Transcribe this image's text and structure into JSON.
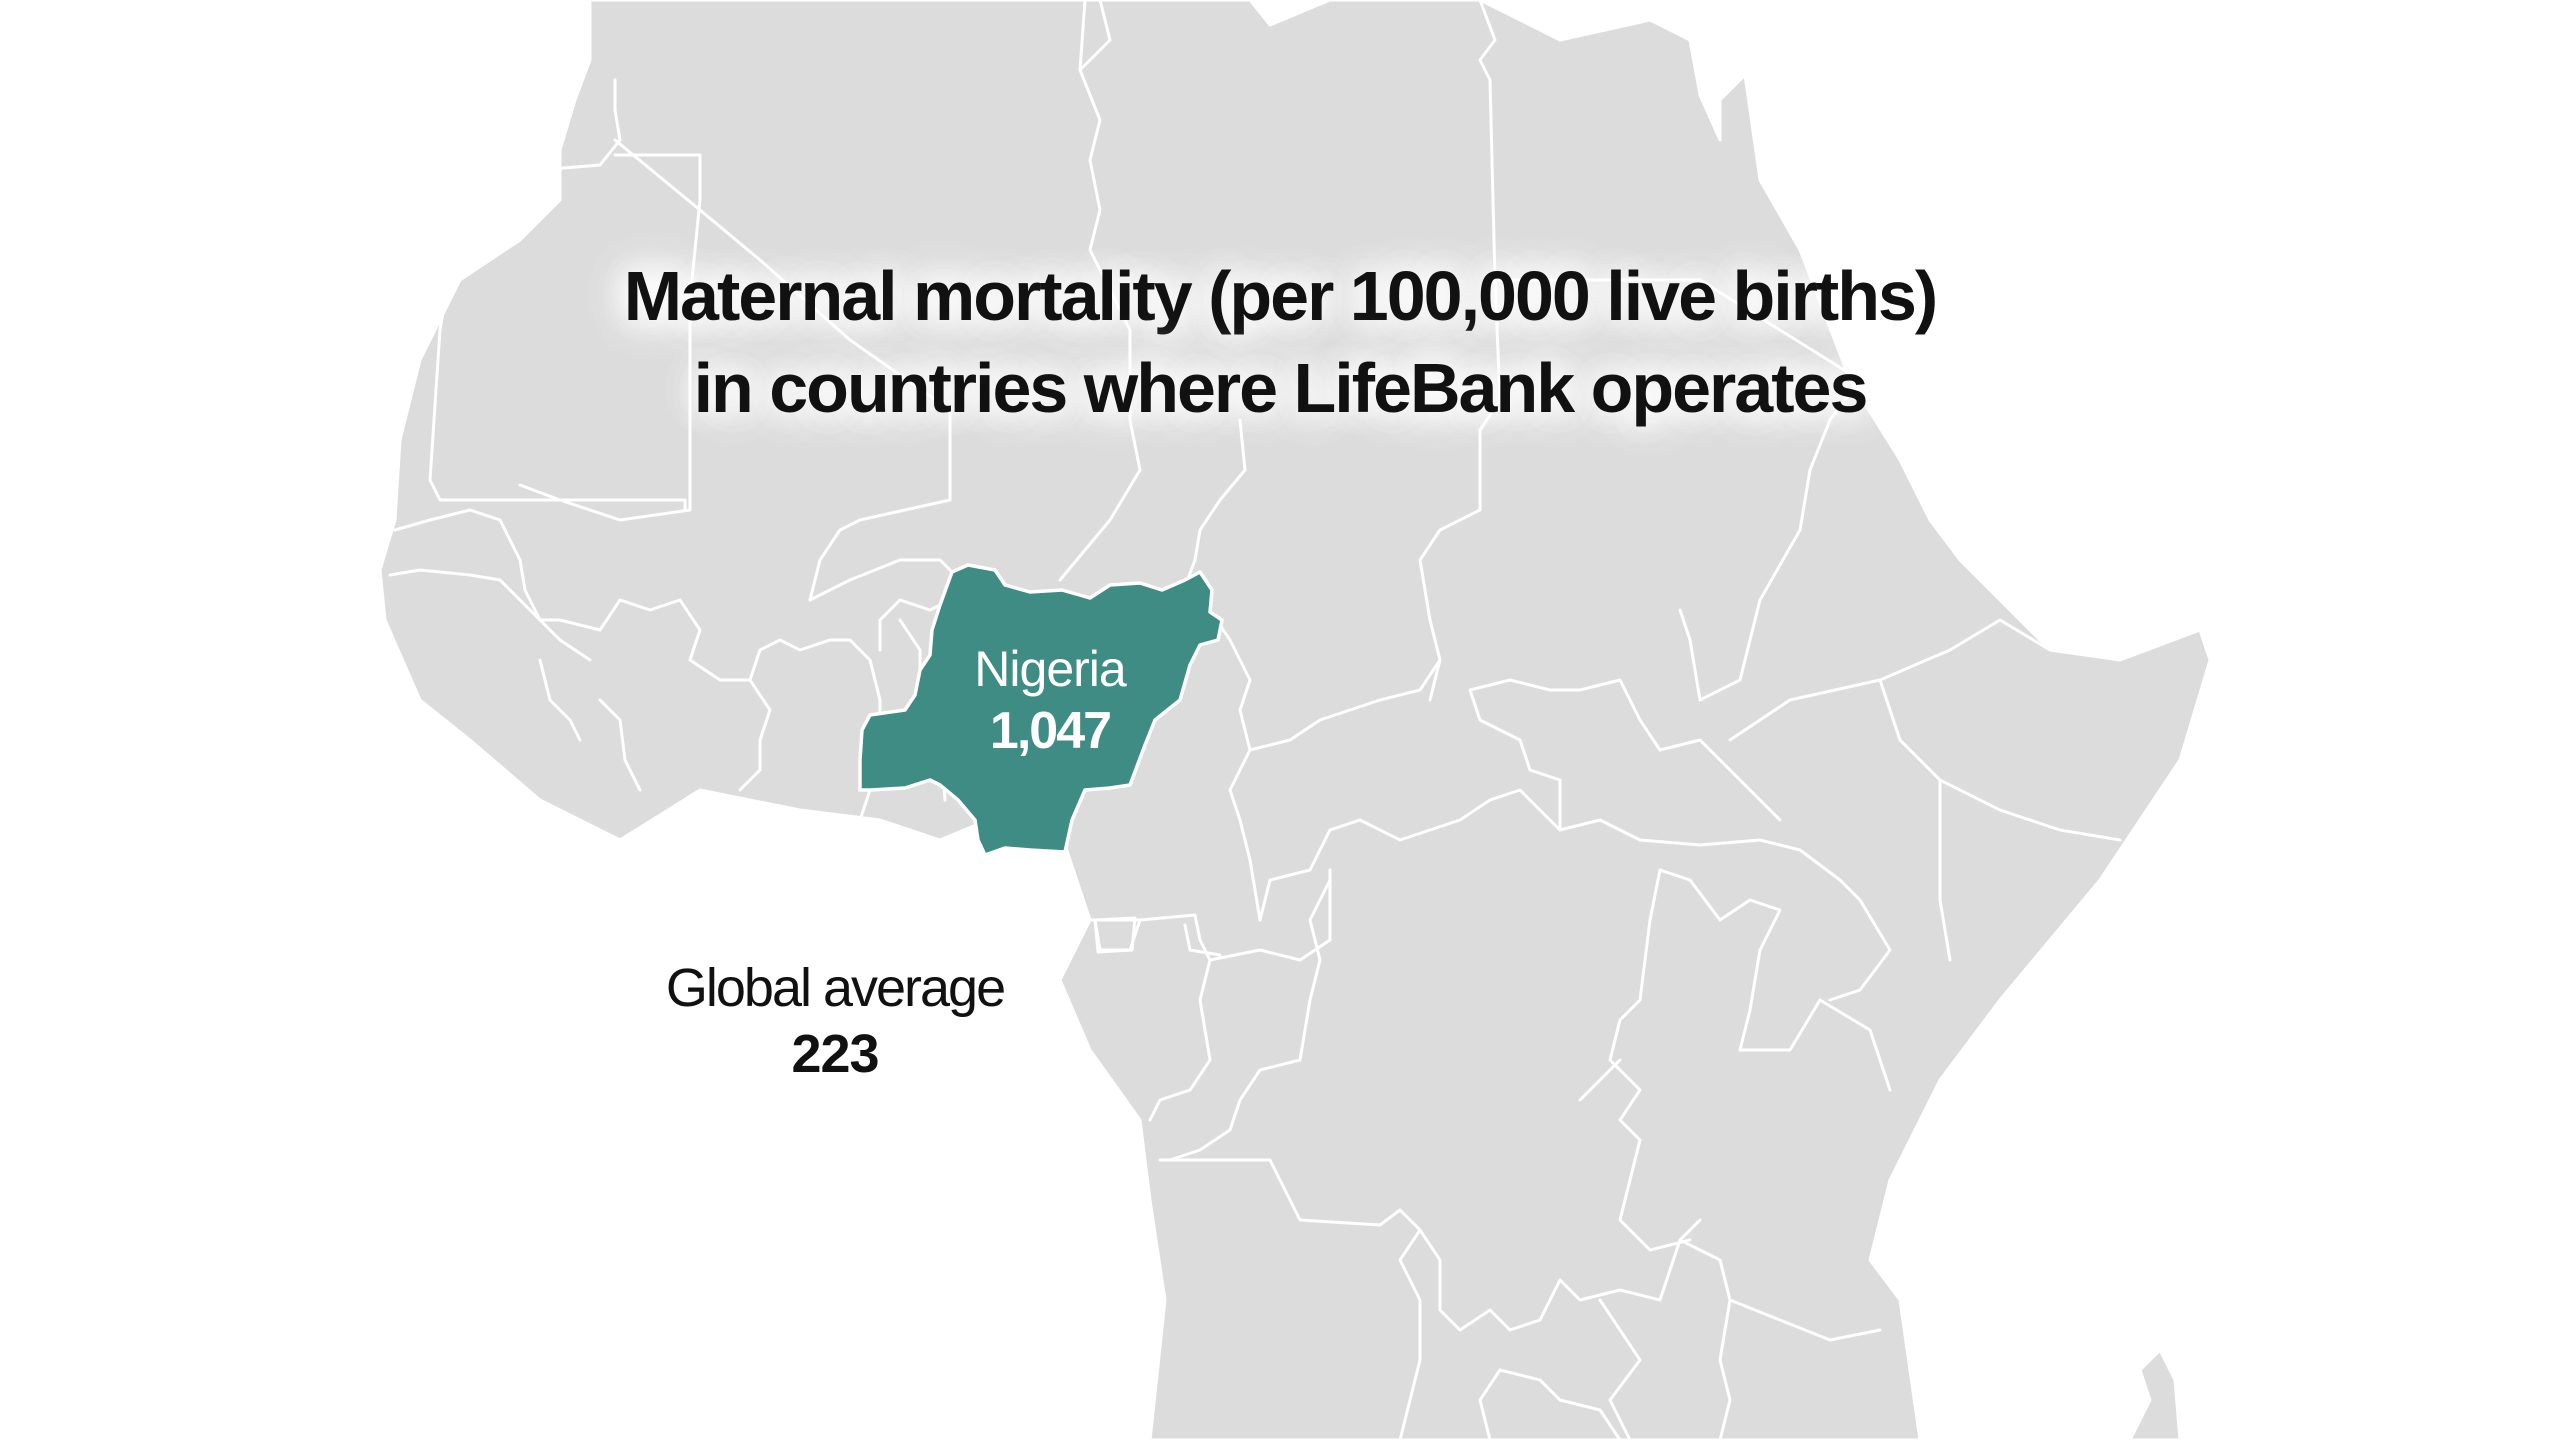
{
  "title": {
    "line1": "Maternal mortality (per 100,000 live births)",
    "line2": "in countries where LifeBank operates"
  },
  "highlighted_country": {
    "name": "Nigeria",
    "value": "1,047",
    "color": "#3e8c84"
  },
  "reference": {
    "name": "Global average",
    "value": "223"
  },
  "colors": {
    "land": "#dcdcdc",
    "borders": "#ffffff",
    "water": "#ffffff",
    "text": "#111111"
  }
}
